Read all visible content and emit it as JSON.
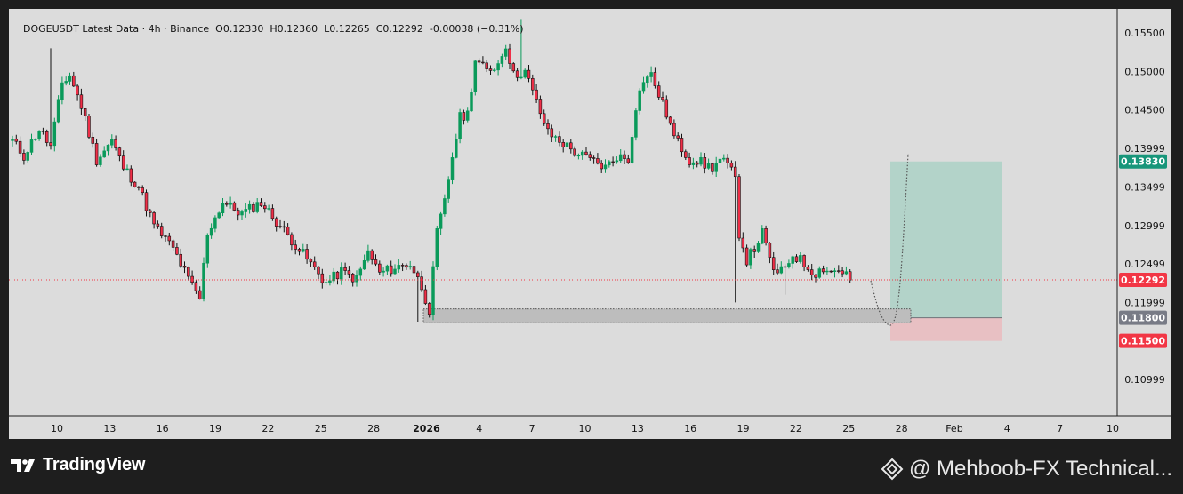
{
  "header": {
    "symbol": "DOGEUSDT Latest Data",
    "interval": "4h",
    "exchange": "Binance",
    "open": "O0.12330",
    "high": "H0.12360",
    "low": "L0.12265",
    "close": "C0.12292",
    "change": "-0.00038 (−0.31%)"
  },
  "chart_data": {
    "type": "candlestick",
    "x_labels": [
      "10",
      "13",
      "16",
      "19",
      "22",
      "25",
      "28",
      "2026",
      "4",
      "7",
      "10",
      "13",
      "16",
      "19",
      "22",
      "25",
      "28",
      "Feb",
      "4",
      "7",
      "10"
    ],
    "y_ticks": [
      "0.15500",
      "0.15000",
      "0.14500",
      "0.13999",
      "0.13499",
      "0.12999",
      "0.12499",
      "0.11999",
      "0.10999"
    ],
    "ylim": [
      0.1055,
      0.1592
    ],
    "current_price": "0.12292",
    "anchors": [
      {
        "t": 0,
        "p": 0.141
      },
      {
        "t": 3,
        "p": 0.139
      },
      {
        "t": 7,
        "p": 0.1425
      },
      {
        "t": 10,
        "p": 0.1402
      },
      {
        "t": 13,
        "p": 0.1485
      },
      {
        "t": 15,
        "p": 0.1495
      },
      {
        "t": 18,
        "p": 0.1455
      },
      {
        "t": 22,
        "p": 0.1385
      },
      {
        "t": 26,
        "p": 0.141
      },
      {
        "t": 29,
        "p": 0.1375
      },
      {
        "t": 33,
        "p": 0.135
      },
      {
        "t": 37,
        "p": 0.13
      },
      {
        "t": 42,
        "p": 0.127
      },
      {
        "t": 46,
        "p": 0.123
      },
      {
        "t": 49,
        "p": 0.1205
      },
      {
        "t": 51,
        "p": 0.129
      },
      {
        "t": 55,
        "p": 0.133
      },
      {
        "t": 60,
        "p": 0.1315
      },
      {
        "t": 65,
        "p": 0.133
      },
      {
        "t": 69,
        "p": 0.1305
      },
      {
        "t": 74,
        "p": 0.1275
      },
      {
        "t": 78,
        "p": 0.125
      },
      {
        "t": 82,
        "p": 0.1225
      },
      {
        "t": 86,
        "p": 0.124
      },
      {
        "t": 90,
        "p": 0.123
      },
      {
        "t": 93,
        "p": 0.1265
      },
      {
        "t": 96,
        "p": 0.1238
      },
      {
        "t": 100,
        "p": 0.1245
      },
      {
        "t": 104,
        "p": 0.125
      },
      {
        "t": 107,
        "p": 0.122
      },
      {
        "t": 109,
        "p": 0.119
      },
      {
        "t": 111,
        "p": 0.129
      },
      {
        "t": 113,
        "p": 0.133
      },
      {
        "t": 115,
        "p": 0.139
      },
      {
        "t": 117,
        "p": 0.144
      },
      {
        "t": 119,
        "p": 0.1445
      },
      {
        "t": 121,
        "p": 0.1515
      },
      {
        "t": 124,
        "p": 0.15
      },
      {
        "t": 127,
        "p": 0.151
      },
      {
        "t": 129,
        "p": 0.1535
      },
      {
        "t": 131,
        "p": 0.1495
      },
      {
        "t": 134,
        "p": 0.15
      },
      {
        "t": 137,
        "p": 0.146
      },
      {
        "t": 140,
        "p": 0.142
      },
      {
        "t": 143,
        "p": 0.141
      },
      {
        "t": 147,
        "p": 0.1395
      },
      {
        "t": 151,
        "p": 0.1385
      },
      {
        "t": 155,
        "p": 0.1375
      },
      {
        "t": 158,
        "p": 0.139
      },
      {
        "t": 161,
        "p": 0.1385
      },
      {
        "t": 163,
        "p": 0.1455
      },
      {
        "t": 165,
        "p": 0.149
      },
      {
        "t": 167,
        "p": 0.1495
      },
      {
        "t": 169,
        "p": 0.147
      },
      {
        "t": 171,
        "p": 0.1445
      },
      {
        "t": 173,
        "p": 0.1415
      },
      {
        "t": 175,
        "p": 0.14
      },
      {
        "t": 177,
        "p": 0.1385
      },
      {
        "t": 179,
        "p": 0.1385
      },
      {
        "t": 181,
        "p": 0.1378
      },
      {
        "t": 183,
        "p": 0.1375
      },
      {
        "t": 185,
        "p": 0.1385
      },
      {
        "t": 187,
        "p": 0.1378
      },
      {
        "t": 189,
        "p": 0.136
      },
      {
        "t": 190,
        "p": 0.129
      },
      {
        "t": 192,
        "p": 0.1255
      },
      {
        "t": 194,
        "p": 0.127
      },
      {
        "t": 196,
        "p": 0.129
      },
      {
        "t": 198,
        "p": 0.1255
      },
      {
        "t": 200,
        "p": 0.1235
      },
      {
        "t": 202,
        "p": 0.1245
      },
      {
        "t": 204,
        "p": 0.1262
      },
      {
        "t": 206,
        "p": 0.1255
      },
      {
        "t": 208,
        "p": 0.1245
      },
      {
        "t": 210,
        "p": 0.1238
      },
      {
        "t": 212,
        "p": 0.1245
      },
      {
        "t": 214,
        "p": 0.124
      },
      {
        "t": 216,
        "p": 0.1242
      },
      {
        "t": 218,
        "p": 0.1238
      },
      {
        "t": 219,
        "p": 0.1229
      }
    ],
    "spikes": [
      {
        "t": 10,
        "high": 0.153
      },
      {
        "t": 189,
        "low": 0.12
      },
      {
        "t": 106,
        "low": 0.1175
      },
      {
        "t": 133,
        "high": 0.1568
      },
      {
        "t": 202,
        "low": 0.121
      },
      {
        "t": 145,
        "low": 0.1393
      }
    ],
    "support_zone": [
      0.11735,
      0.11915
    ],
    "position": {
      "entry": "0.11800",
      "target": "0.13830",
      "stop": "0.11500",
      "entry_value": 0.118,
      "target_value": 0.1383,
      "stop_value": 0.115
    }
  },
  "colors": {
    "background": "#dcdcdc",
    "bull": "#0a9a5a",
    "bear": "#111111",
    "bear_body": "#ef2f48",
    "profit_zone": "#b3d3c9",
    "loss_zone": "#e8c0c3",
    "target_tag": "#17967a",
    "price_tag": "#f23645",
    "entry_tag": "#787b86",
    "stop_tag": "#f23645"
  },
  "footer": {
    "logo_text": "TradingView",
    "author": "@ Mehboob-FX Technical..."
  }
}
